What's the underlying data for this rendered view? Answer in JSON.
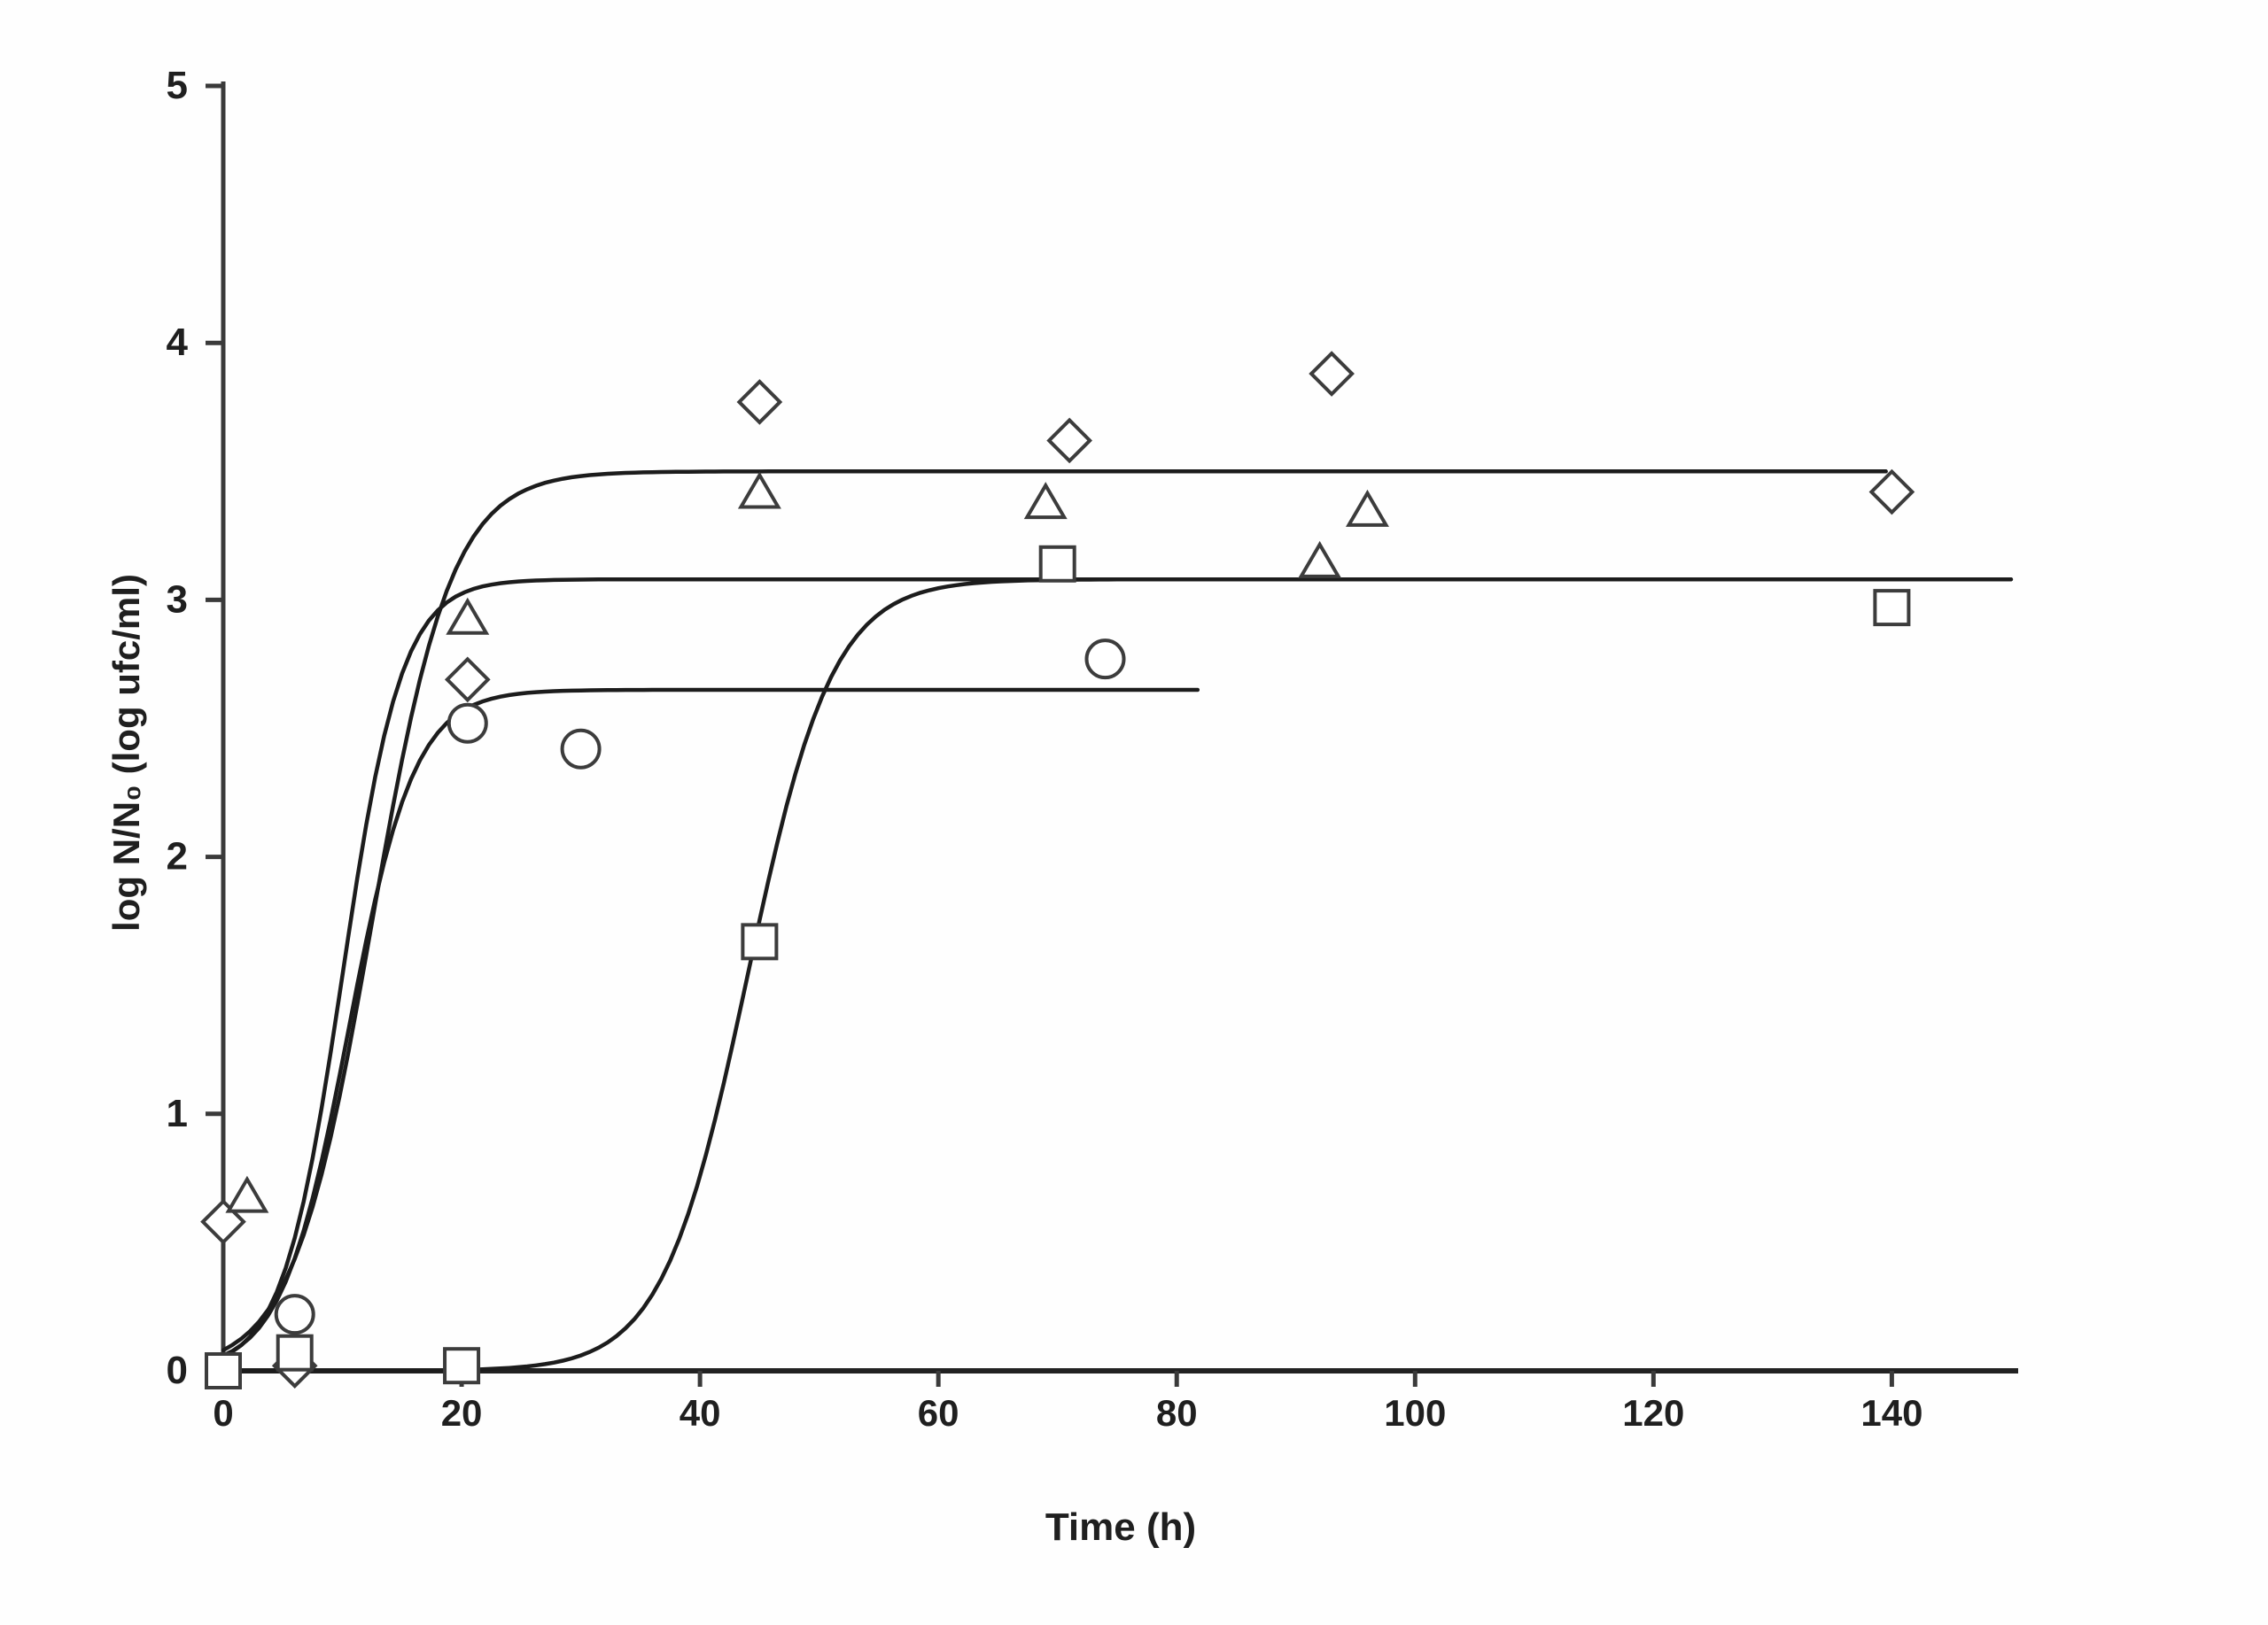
{
  "chart_data": {
    "type": "scatter",
    "title": "",
    "xlabel": "Time (h)",
    "ylabel": "log N/N₀ (log ufc/ml)",
    "xlim": [
      0,
      150.6
    ],
    "ylim": [
      0,
      5
    ],
    "x_ticks": [
      0,
      20,
      40,
      60,
      80,
      100,
      120,
      140
    ],
    "y_ticks": [
      0,
      1,
      2,
      3,
      4,
      5
    ],
    "grid": false,
    "legend_position": "none",
    "series": [
      {
        "name": "diamond-series",
        "marker": "diamond",
        "points": [
          [
            0,
            0.58
          ],
          [
            6,
            0.02
          ],
          [
            20.5,
            2.69
          ],
          [
            45,
            3.77
          ],
          [
            71,
            3.62
          ],
          [
            93,
            3.88
          ],
          [
            140,
            3.42
          ]
        ]
      },
      {
        "name": "triangle-series",
        "marker": "triangle",
        "points": [
          [
            2,
            0.68
          ],
          [
            20.5,
            2.93
          ],
          [
            45,
            3.42
          ],
          [
            69,
            3.38
          ],
          [
            92,
            3.15
          ],
          [
            96,
            3.35
          ]
        ]
      },
      {
        "name": "circle-series",
        "marker": "circle",
        "points": [
          [
            6,
            0.22
          ],
          [
            20.5,
            2.52
          ],
          [
            30,
            2.42
          ],
          [
            74,
            2.77
          ]
        ]
      },
      {
        "name": "square-series",
        "marker": "square",
        "points": [
          [
            0,
            0.0
          ],
          [
            6,
            0.07
          ],
          [
            20,
            0.02
          ],
          [
            45,
            1.67
          ],
          [
            70,
            3.14
          ],
          [
            140,
            2.97
          ]
        ]
      }
    ],
    "fitted_curves": [
      {
        "name": "diamond-fit",
        "model": "logistic",
        "plateau": 3.5,
        "k": 0.3,
        "t_mid": 12.5,
        "t_range": [
          0,
          140
        ]
      },
      {
        "name": "triangle-fit",
        "model": "logistic",
        "plateau": 3.08,
        "k": 0.4,
        "t_mid": 10.0,
        "t_range": [
          0,
          150.5
        ]
      },
      {
        "name": "circle-fit",
        "model": "logistic",
        "plateau": 2.65,
        "k": 0.36,
        "t_mid": 10.5,
        "t_range": [
          0,
          82
        ]
      },
      {
        "name": "square-fit",
        "model": "logistic",
        "plateau": 3.08,
        "k": 0.28,
        "t_mid": 44.0,
        "t_range": [
          0,
          150.5
        ]
      }
    ],
    "colors": {
      "curve": "#1c1c1c",
      "marker_stroke": "#3c3c3c",
      "marker_fill": "#ffffff",
      "axis": "#3a3a3a",
      "text": "#1f1f1f"
    }
  }
}
